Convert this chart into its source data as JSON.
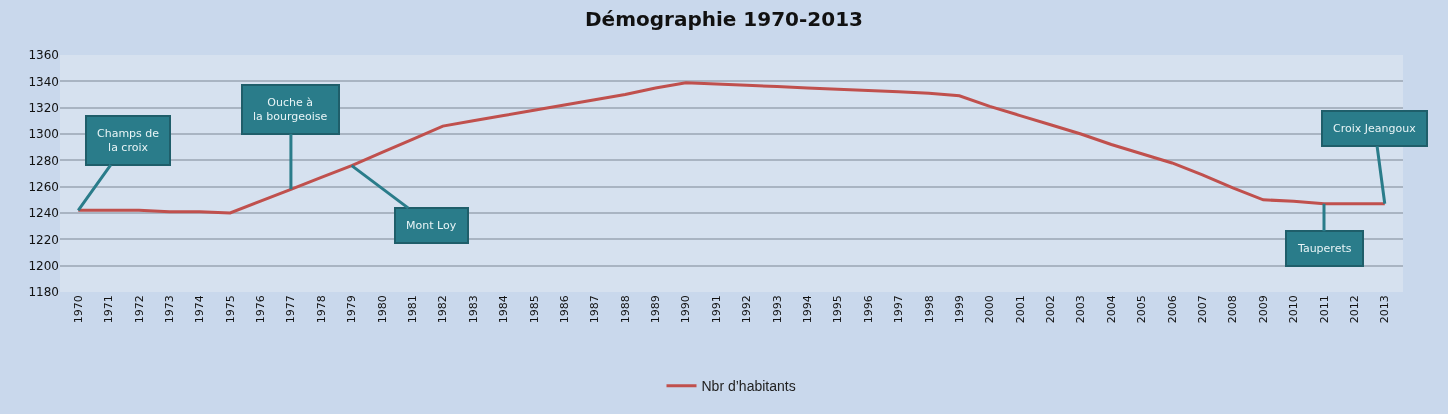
{
  "chart_data": {
    "type": "line",
    "title": "Démographie 1970-2013",
    "categories": [
      "1970",
      "1971",
      "1972",
      "1973",
      "1974",
      "1975",
      "1976",
      "1977",
      "1978",
      "1979",
      "1980",
      "1981",
      "1982",
      "1983",
      "1984",
      "1985",
      "1986",
      "1987",
      "1988",
      "1989",
      "1990",
      "1991",
      "1992",
      "1993",
      "1994",
      "1995",
      "1996",
      "1997",
      "1998",
      "1999",
      "2000",
      "2001",
      "2002",
      "2003",
      "2004",
      "2005",
      "2006",
      "2007",
      "2008",
      "2009",
      "2010",
      "2011",
      "2012",
      "2013"
    ],
    "series": [
      {
        "name": "Nbr d’habitants",
        "color": "#c0504d",
        "values": [
          1242,
          1242,
          1242,
          1241,
          1241,
          1240,
          1249,
          1258,
          1267,
          1276,
          1286,
          1296,
          1306,
          1310,
          1314,
          1318,
          1322,
          1326,
          1330,
          1335,
          1339,
          1338,
          1337,
          1336,
          1335,
          1334,
          1333,
          1332,
          1331,
          1329,
          1321,
          1314,
          1307,
          1300,
          1292,
          1285,
          1278,
          1269,
          1259,
          1250,
          1249,
          1247,
          1247,
          1247
        ]
      }
    ],
    "ylim": [
      1180,
      1360
    ],
    "yticks": [
      1180,
      1200,
      1220,
      1240,
      1260,
      1280,
      1300,
      1320,
      1340,
      1360
    ],
    "grid": "y",
    "legend": "bottom",
    "marker": "none",
    "line_style": "solid",
    "annotations": [
      {
        "text": "Champs de la croix",
        "x": "1970",
        "y": 1242
      },
      {
        "text": "Ouche à la bourgeoise",
        "x": "1977",
        "y": 1258
      },
      {
        "text": "Mont Loy",
        "x": "1979",
        "y": 1276
      },
      {
        "text": "Tauperets",
        "x": "2011",
        "y": 1247
      },
      {
        "text": "Croix Jeangoux",
        "x": "2013",
        "y": 1247
      }
    ]
  }
}
